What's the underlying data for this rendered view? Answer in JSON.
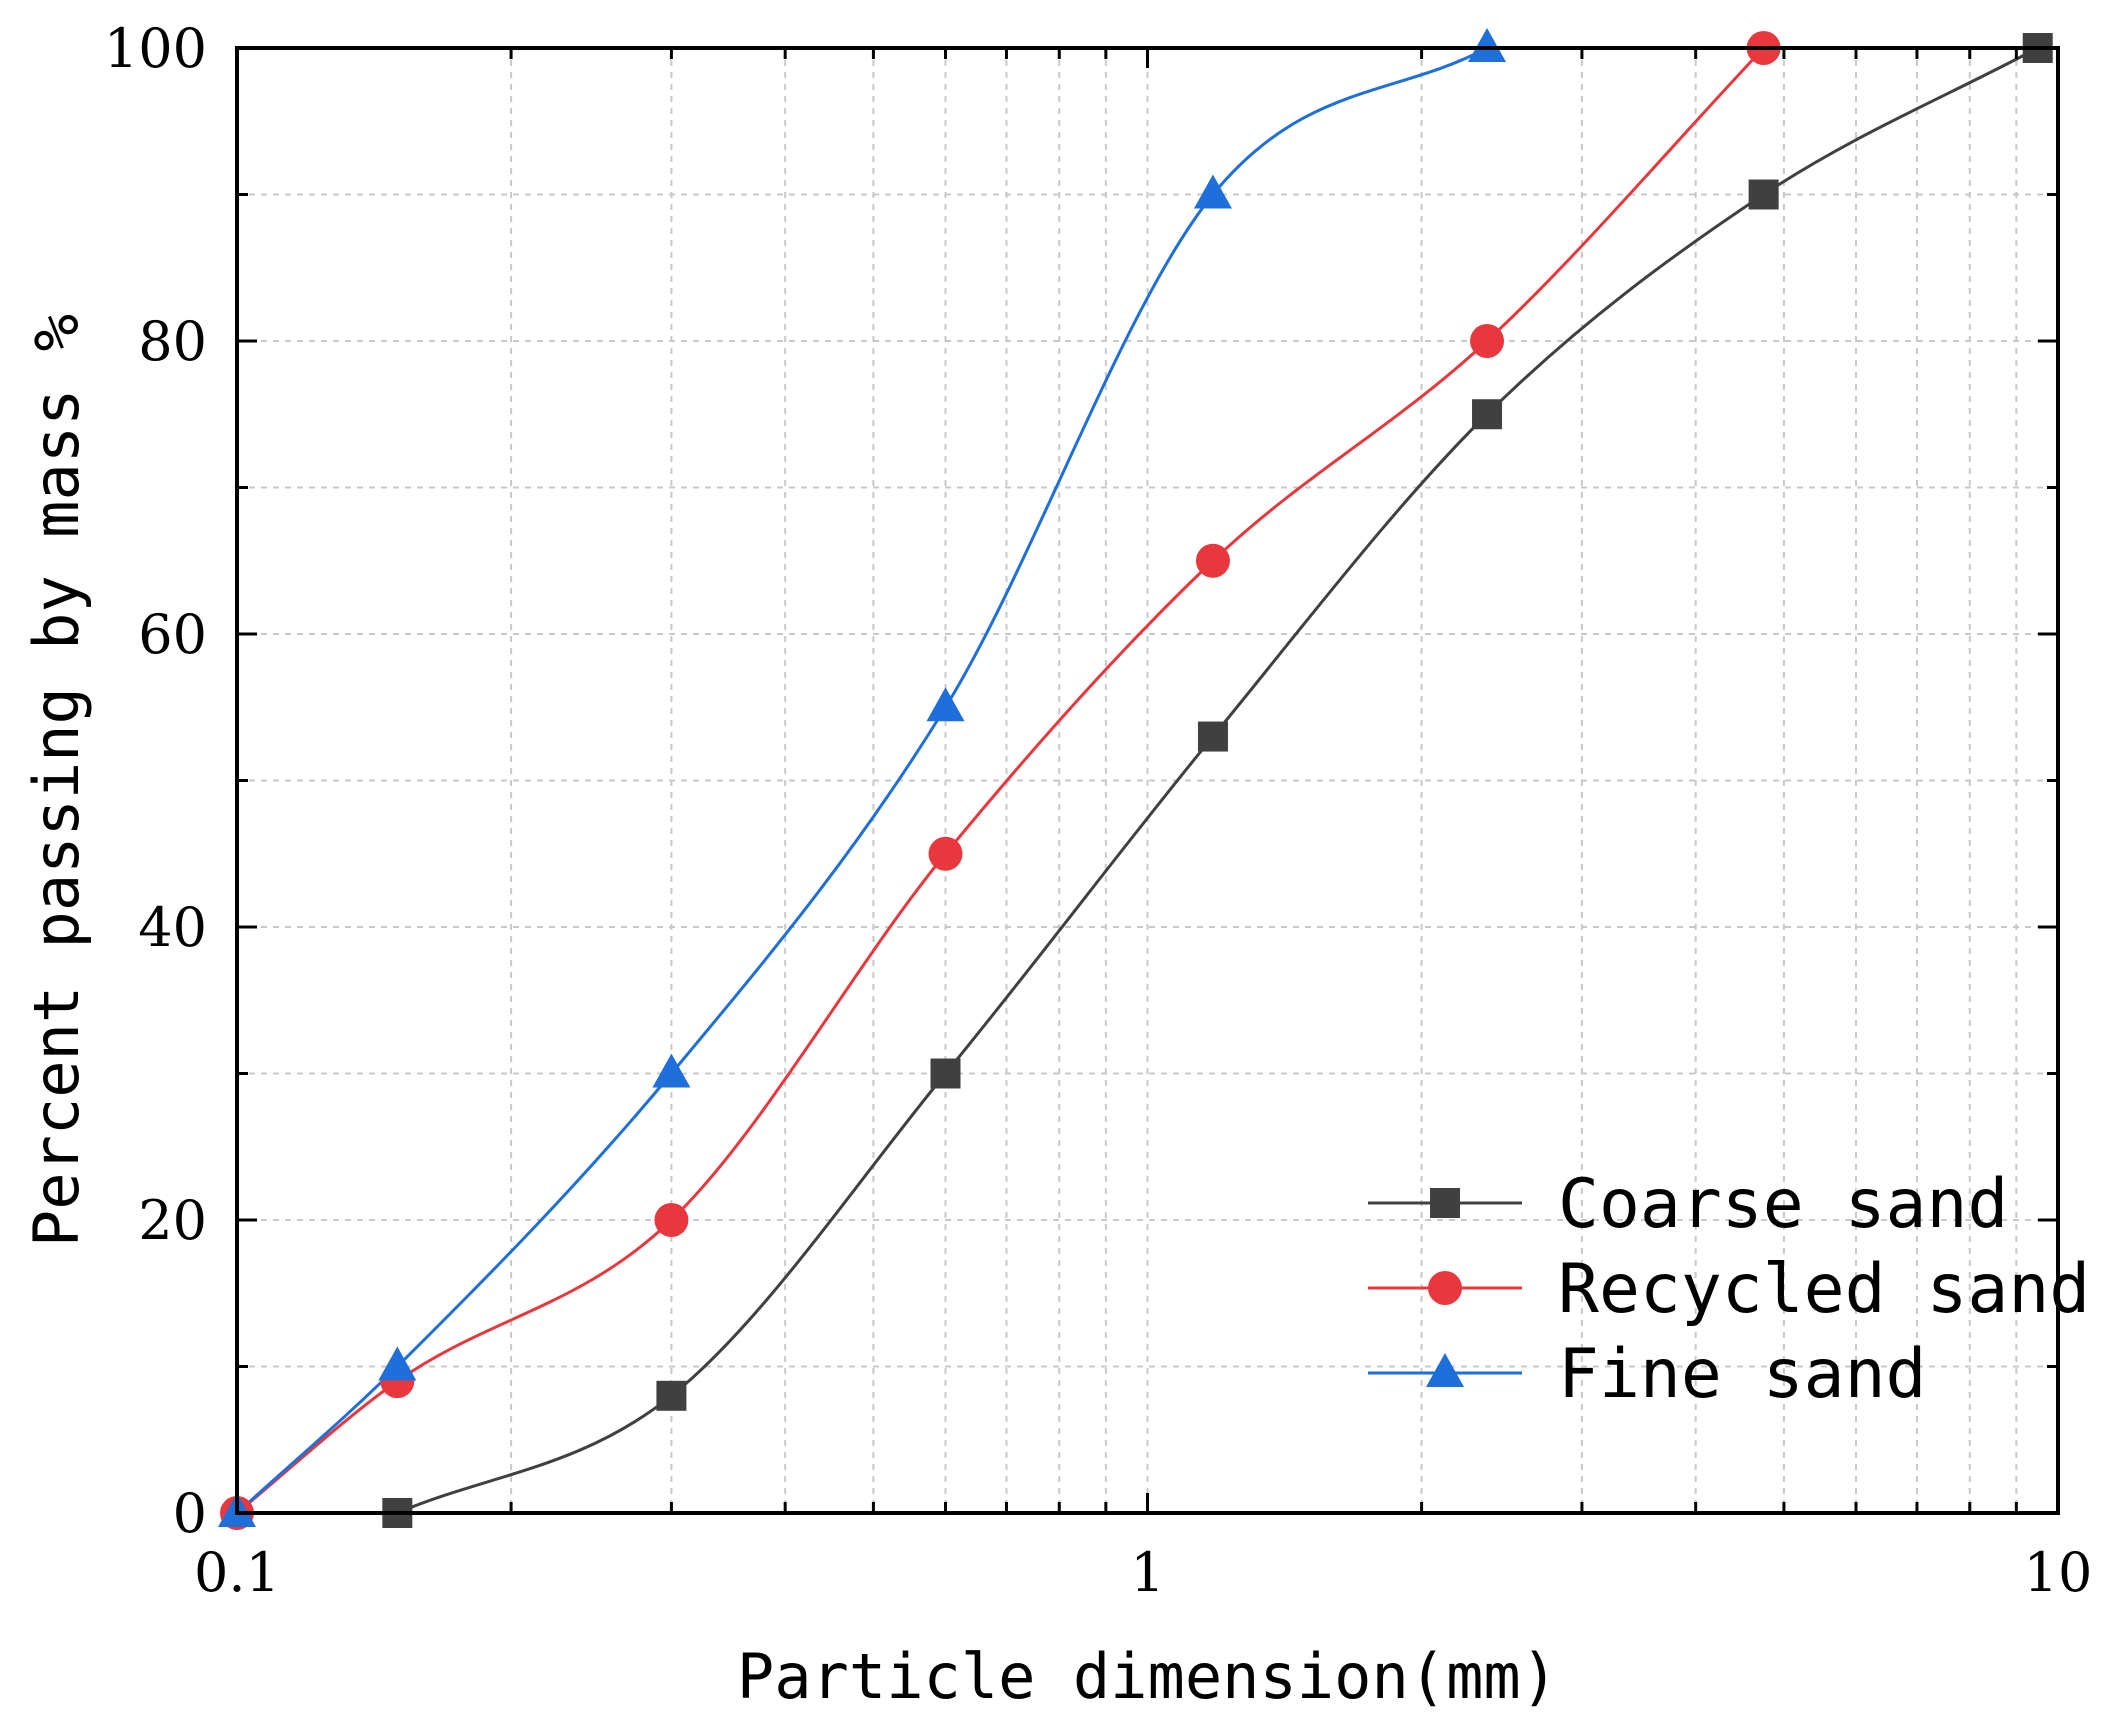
{
  "chart_data": {
    "type": "line",
    "title": "",
    "xlabel": "Particle dimension(mm)",
    "ylabel": "Percent passing by mass %",
    "xscale": "log",
    "xlim": [
      0.1,
      10
    ],
    "ylim": [
      0,
      100
    ],
    "x_ticks": [
      {
        "value": 0.1,
        "label": "0.1"
      },
      {
        "value": 1,
        "label": "1"
      },
      {
        "value": 10,
        "label": "10"
      }
    ],
    "y_ticks": [
      {
        "value": 0,
        "label": "0"
      },
      {
        "value": 20,
        "label": "20"
      },
      {
        "value": 40,
        "label": "40"
      },
      {
        "value": 60,
        "label": "60"
      },
      {
        "value": 80,
        "label": "80"
      },
      {
        "value": 100,
        "label": "100"
      }
    ],
    "grid": true,
    "legend_position": "bottom-right",
    "series": [
      {
        "name": "Coarse sand",
        "color": "#404040",
        "marker": "square",
        "x": [
          0.15,
          0.3,
          0.6,
          1.18,
          2.36,
          4.75,
          9.5
        ],
        "values": [
          0,
          8,
          30,
          53,
          75,
          90,
          100
        ]
      },
      {
        "name": "Recycled sand",
        "color": "#e8383d",
        "marker": "circle",
        "x": [
          0.1,
          0.15,
          0.3,
          0.6,
          1.18,
          2.36,
          4.75
        ],
        "values": [
          0,
          9,
          20,
          45,
          65,
          80,
          100
        ]
      },
      {
        "name": "Fine sand",
        "color": "#1e6fd9",
        "marker": "triangle",
        "x": [
          0.1,
          0.15,
          0.3,
          0.6,
          1.18,
          2.36
        ],
        "values": [
          0,
          10,
          30,
          55,
          90,
          100
        ]
      }
    ]
  }
}
